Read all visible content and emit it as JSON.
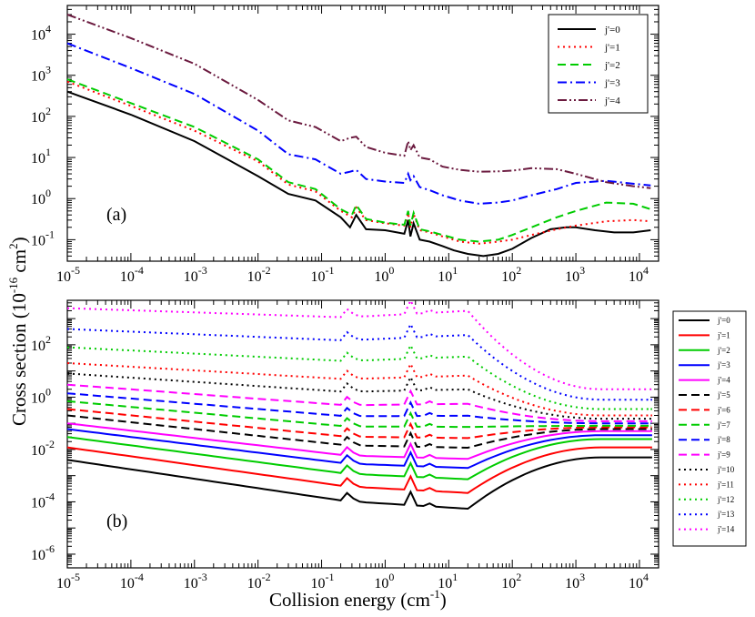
{
  "chart_data": [
    {
      "type": "line",
      "panel_label": "(a)",
      "xscale": "log",
      "yscale": "log",
      "xlim": [
        1e-05,
        20000
      ],
      "ylim": [
        0.03,
        50000
      ],
      "x_tick_exponents": [
        "-5",
        "-4",
        "-3",
        "-2",
        "-1",
        "0",
        "1",
        "2",
        "3",
        "4"
      ],
      "y_tick_exponents": [
        "-1",
        "0",
        "1",
        "2",
        "3",
        "4"
      ],
      "legend_position": "top-right",
      "series": [
        {
          "name": "j'=0",
          "color": "#000000",
          "style": "solid",
          "x": [
            1e-05,
            0.0001,
            0.001,
            0.01,
            0.03,
            0.08,
            0.2,
            0.28,
            0.35,
            0.5,
            1,
            2,
            2.3,
            2.5,
            2.8,
            3.5,
            5,
            8,
            12,
            20,
            35,
            60,
            100,
            200,
            400,
            700,
            1000,
            2000,
            4000,
            8000,
            15000
          ],
          "y": [
            400,
            110,
            25,
            3.5,
            1.3,
            0.9,
            0.35,
            0.2,
            0.4,
            0.18,
            0.17,
            0.14,
            0.3,
            0.12,
            0.25,
            0.1,
            0.09,
            0.07,
            0.055,
            0.045,
            0.04,
            0.045,
            0.06,
            0.11,
            0.18,
            0.2,
            0.2,
            0.17,
            0.15,
            0.15,
            0.17
          ]
        },
        {
          "name": "j'=1",
          "color": "#ff0000",
          "style": "dotted",
          "x": [
            1e-05,
            0.0001,
            0.001,
            0.01,
            0.03,
            0.08,
            0.2,
            0.3,
            0.35,
            0.5,
            1,
            2,
            2.3,
            2.5,
            2.8,
            3.5,
            5,
            8,
            15,
            30,
            60,
            100,
            200,
            500,
            1000,
            3000,
            8000,
            15000
          ],
          "y": [
            700,
            180,
            45,
            8,
            2.2,
            1.5,
            0.5,
            0.35,
            0.6,
            0.3,
            0.25,
            0.22,
            0.45,
            0.2,
            0.42,
            0.17,
            0.15,
            0.12,
            0.09,
            0.08,
            0.09,
            0.1,
            0.13,
            0.18,
            0.22,
            0.28,
            0.3,
            0.28
          ]
        },
        {
          "name": "j'=2",
          "color": "#00cc00",
          "style": "dashed",
          "x": [
            1e-05,
            0.0001,
            0.001,
            0.01,
            0.03,
            0.08,
            0.2,
            0.3,
            0.35,
            0.5,
            1,
            2,
            2.3,
            2.5,
            2.8,
            3.5,
            5,
            8,
            15,
            30,
            60,
            100,
            200,
            500,
            1000,
            3000,
            8000,
            15000
          ],
          "y": [
            800,
            210,
            55,
            9,
            2.5,
            1.7,
            0.55,
            0.4,
            0.7,
            0.32,
            0.26,
            0.23,
            0.5,
            0.22,
            0.45,
            0.18,
            0.16,
            0.13,
            0.1,
            0.09,
            0.1,
            0.13,
            0.2,
            0.35,
            0.5,
            0.8,
            0.75,
            0.55
          ]
        },
        {
          "name": "j'=3",
          "color": "#0000ff",
          "style": "dashdot",
          "x": [
            1e-05,
            0.0001,
            0.001,
            0.01,
            0.03,
            0.08,
            0.2,
            0.28,
            0.35,
            0.5,
            1,
            2,
            2.3,
            2.5,
            2.8,
            3.5,
            5,
            8,
            15,
            30,
            60,
            100,
            200,
            500,
            1000,
            3000,
            8000,
            15000
          ],
          "y": [
            6000,
            1500,
            350,
            45,
            12,
            9,
            4,
            4.5,
            5,
            3,
            2.6,
            2.4,
            4,
            2.8,
            3.5,
            1.9,
            1.6,
            1.2,
            0.9,
            0.75,
            0.8,
            0.9,
            1.2,
            1.7,
            2.4,
            2.7,
            2.3,
            2.1
          ]
        },
        {
          "name": "j'=4",
          "color": "#6b1a3f",
          "style": "dashdotdot",
          "x": [
            1e-05,
            0.0001,
            0.001,
            0.01,
            0.03,
            0.08,
            0.2,
            0.28,
            0.35,
            0.5,
            1,
            2,
            2.3,
            2.5,
            2.8,
            3.5,
            5,
            8,
            15,
            30,
            60,
            100,
            200,
            500,
            1000,
            3000,
            8000,
            15000
          ],
          "y": [
            30000,
            8000,
            1900,
            250,
            80,
            55,
            25,
            30,
            32,
            18,
            13,
            11,
            25,
            15,
            20,
            10,
            9,
            6,
            5,
            4.5,
            4.6,
            4.8,
            5.5,
            5.2,
            4,
            2.5,
            2,
            1.8
          ]
        }
      ]
    },
    {
      "type": "line",
      "panel_label": "(b)",
      "xscale": "log",
      "yscale": "log",
      "xlim": [
        1e-05,
        20000
      ],
      "ylim": [
        3e-07,
        5000
      ],
      "x_tick_exponents": [
        "-5",
        "-4",
        "-3",
        "-2",
        "-1",
        "0",
        "1",
        "2",
        "3",
        "4"
      ],
      "y_tick_exponents": [
        "-6",
        "-4",
        "-2",
        "0",
        "2"
      ],
      "legend_position": "right",
      "series": [
        {
          "name": "j'=0",
          "color": "#000000",
          "style": "solid",
          "y0": 0.004,
          "end": 0.005
        },
        {
          "name": "j'=1",
          "color": "#ff0000",
          "style": "solid",
          "y0": 0.012,
          "end": 0.012
        },
        {
          "name": "j'=2",
          "color": "#00cc00",
          "style": "solid",
          "y0": 0.03,
          "end": 0.025
        },
        {
          "name": "j'=3",
          "color": "#0000ff",
          "style": "solid",
          "y0": 0.06,
          "end": 0.035
        },
        {
          "name": "j'=4",
          "color": "#ff00ff",
          "style": "solid",
          "y0": 0.1,
          "end": 0.05
        },
        {
          "name": "j'=5",
          "color": "#000000",
          "style": "dashed",
          "y0": 0.2,
          "end": 0.06
        },
        {
          "name": "j'=6",
          "color": "#ff0000",
          "style": "dashed",
          "y0": 0.35,
          "end": 0.07
        },
        {
          "name": "j'=7",
          "color": "#00cc00",
          "style": "dashed",
          "y0": 0.7,
          "end": 0.08
        },
        {
          "name": "j'=8",
          "color": "#0000ff",
          "style": "dashed",
          "y0": 1.4,
          "end": 0.1
        },
        {
          "name": "j'=9",
          "color": "#ff00ff",
          "style": "dashed",
          "y0": 3,
          "end": 0.12
        },
        {
          "name": "j'=10",
          "color": "#000000",
          "style": "dotted",
          "y0": 8,
          "end": 0.15
        },
        {
          "name": "j'=11",
          "color": "#ff0000",
          "style": "dotted",
          "y0": 20,
          "end": 0.2
        },
        {
          "name": "j'=12",
          "color": "#00cc00",
          "style": "dotted",
          "y0": 80,
          "end": 0.35
        },
        {
          "name": "j'=13",
          "color": "#0000ff",
          "style": "dotted",
          "y0": 400,
          "end": 0.8
        },
        {
          "name": "j'=14",
          "color": "#ff00ff",
          "style": "dotted",
          "y0": 2500,
          "end": 2
        }
      ]
    }
  ],
  "labels": {
    "panel_a": "(a)",
    "panel_b": "(b)",
    "ylabel_main": "Cross section (10",
    "ylabel_exp1": "-16",
    "ylabel_mid": " cm",
    "ylabel_exp2": "2",
    "ylabel_end": ")",
    "xlabel_main": "Collision energy (cm",
    "xlabel_exp": "-1",
    "xlabel_end": ")",
    "tick_base": "10"
  }
}
